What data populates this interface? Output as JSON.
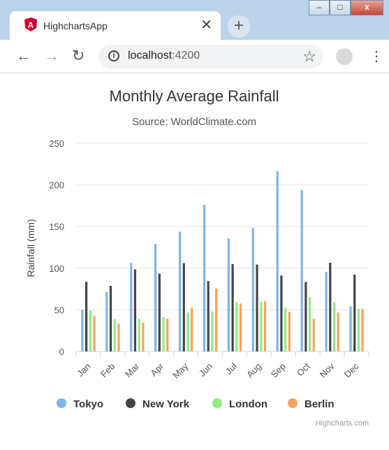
{
  "window": {
    "tab_title": "HighchartsApp",
    "close_glyph": "✕",
    "new_tab_glyph": "+",
    "minimize_glyph": "–",
    "maximize_glyph": "□",
    "close_window_glyph": "x"
  },
  "toolbar": {
    "url_host": "localhost",
    "url_port": ":4200",
    "back_icon": "arrow-left-icon",
    "forward_icon": "arrow-right-icon",
    "reload_icon": "reload-icon",
    "bookmark_icon": "star-icon"
  },
  "chart_data": {
    "type": "bar",
    "title": "Monthly Average Rainfall",
    "subtitle": "Source: WorldClimate.com",
    "ylabel": "Rainfall (mm)",
    "ylim": [
      0,
      250
    ],
    "yticks": [
      0,
      50,
      100,
      150,
      200,
      250
    ],
    "categories": [
      "Jan",
      "Feb",
      "Mar",
      "Apr",
      "May",
      "Jun",
      "Jul",
      "Aug",
      "Sep",
      "Oct",
      "Nov",
      "Dec"
    ],
    "series": [
      {
        "name": "Tokyo",
        "color": "#7cb5ec",
        "values": [
          49.9,
          71.5,
          106.4,
          129.2,
          144.0,
          176.0,
          135.6,
          148.5,
          216.4,
          194.1,
          95.6,
          54.4
        ]
      },
      {
        "name": "New York",
        "color": "#434348",
        "values": [
          83.6,
          78.8,
          98.5,
          93.4,
          106.0,
          84.5,
          105.0,
          104.3,
          91.2,
          83.5,
          106.6,
          92.3
        ]
      },
      {
        "name": "London",
        "color": "#90ed7d",
        "values": [
          48.9,
          38.8,
          39.3,
          41.4,
          47.0,
          48.3,
          59.0,
          59.6,
          52.4,
          65.2,
          59.3,
          51.2
        ]
      },
      {
        "name": "Berlin",
        "color": "#f7a35c",
        "values": [
          42.4,
          33.2,
          34.5,
          39.7,
          52.6,
          75.5,
          57.4,
          60.4,
          47.6,
          39.1,
          46.8,
          51.1
        ]
      }
    ],
    "grid": true,
    "legend": "bottom-center",
    "credits": "Highcharts.com"
  }
}
